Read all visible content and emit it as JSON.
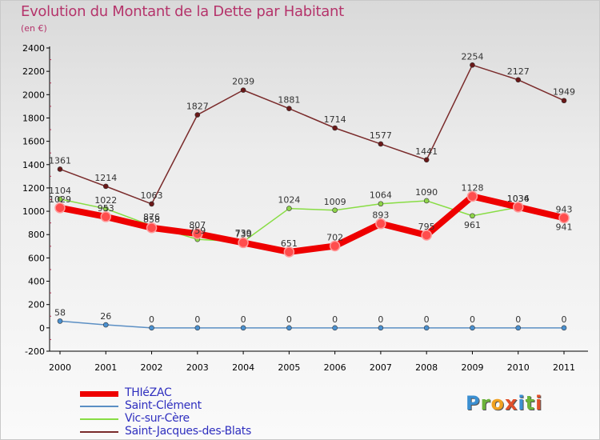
{
  "title": "Evolution du Montant de la Dette par Habitant",
  "subtitle": "(en €)",
  "colors": {
    "title": "#b5346b",
    "legend_text": "#2f2fbf",
    "axis_text": "#000000"
  },
  "logo": {
    "letters": [
      {
        "ch": "P",
        "color": "#3b8fd1"
      },
      {
        "ch": "r",
        "color": "#6bb33a"
      },
      {
        "ch": "o",
        "color": "#f0a020"
      },
      {
        "ch": "x",
        "color": "#e04f2a"
      },
      {
        "ch": "i",
        "color": "#3b8fd1"
      },
      {
        "ch": "t",
        "color": "#6bb33a"
      },
      {
        "ch": "i",
        "color": "#e04f2a"
      }
    ]
  },
  "chart_data": {
    "type": "line",
    "title": "Evolution du Montant de la Dette par Habitant",
    "subtitle": "(en €)",
    "x": [
      "2000",
      "2001",
      "2002",
      "2003",
      "2004",
      "2005",
      "2006",
      "2007",
      "2008",
      "2009",
      "2010",
      "2011"
    ],
    "ylim": [
      -200,
      2400
    ],
    "yticks": [
      -200,
      0,
      200,
      400,
      600,
      800,
      1000,
      1200,
      1400,
      1600,
      1800,
      2000,
      2200,
      2400
    ],
    "grid": false,
    "legend_position": "bottom-left",
    "series": [
      {
        "name": "THIéZAC",
        "color": "#ee0000",
        "point_color": "#ff4d4d",
        "width": 8,
        "values": [
          1029,
          953,
          858,
          807,
          730,
          651,
          702,
          893,
          795,
          1128,
          1036,
          943
        ],
        "labels": [
          "1029",
          "953",
          "858",
          "807",
          "730",
          "651",
          "702",
          "893",
          "795",
          "1128",
          "1036",
          "943"
        ],
        "label_side": [
          "above",
          "above",
          "above",
          "above",
          "above",
          "above",
          "above",
          "above",
          "above",
          "above",
          "above",
          "above"
        ]
      },
      {
        "name": "Saint-Clément",
        "color": "#5b8fc4",
        "point_color": "#4a90d0",
        "width": 1.5,
        "values": [
          58,
          26,
          0,
          0,
          0,
          0,
          0,
          0,
          0,
          0,
          0,
          0
        ],
        "labels": [
          "58",
          "26",
          "0",
          "0",
          "0",
          "0",
          "0",
          "0",
          "0",
          "0",
          "0",
          "0"
        ],
        "label_side": [
          "above",
          "above",
          "above",
          "above",
          "above",
          "above",
          "above",
          "above",
          "above",
          "above",
          "above",
          "above"
        ]
      },
      {
        "name": "Vic-sur-Cère",
        "color": "#88dd44",
        "point_color": "#8fd44a",
        "width": 1.5,
        "values": [
          1104,
          1022,
          876,
          759,
          739,
          1024,
          1009,
          1064,
          1090,
          961,
          1034,
          941
        ],
        "labels": [
          "1104",
          "1022",
          "876",
          "759",
          "739",
          "1024",
          "1009",
          "1064",
          "1090",
          "961",
          "1034",
          "941"
        ],
        "label_side": [
          "above",
          "above",
          "above",
          "above",
          "above",
          "above",
          "above",
          "above",
          "above",
          "below",
          "above",
          "below"
        ]
      },
      {
        "name": "Saint-Jacques-des-Blats",
        "color": "#7a2b2b",
        "point_color": "#6b1818",
        "width": 1.5,
        "values": [
          1361,
          1214,
          1063,
          1827,
          2039,
          1881,
          1714,
          1577,
          1441,
          2254,
          2127,
          1949
        ],
        "labels": [
          "1361",
          "1214",
          "1063",
          "1827",
          "2039",
          "1881",
          "1714",
          "1577",
          "1441",
          "2254",
          "2127",
          "1949"
        ],
        "label_side": [
          "above",
          "above",
          "above",
          "above",
          "above",
          "above",
          "above",
          "above",
          "above",
          "above",
          "above",
          "above"
        ]
      }
    ]
  }
}
